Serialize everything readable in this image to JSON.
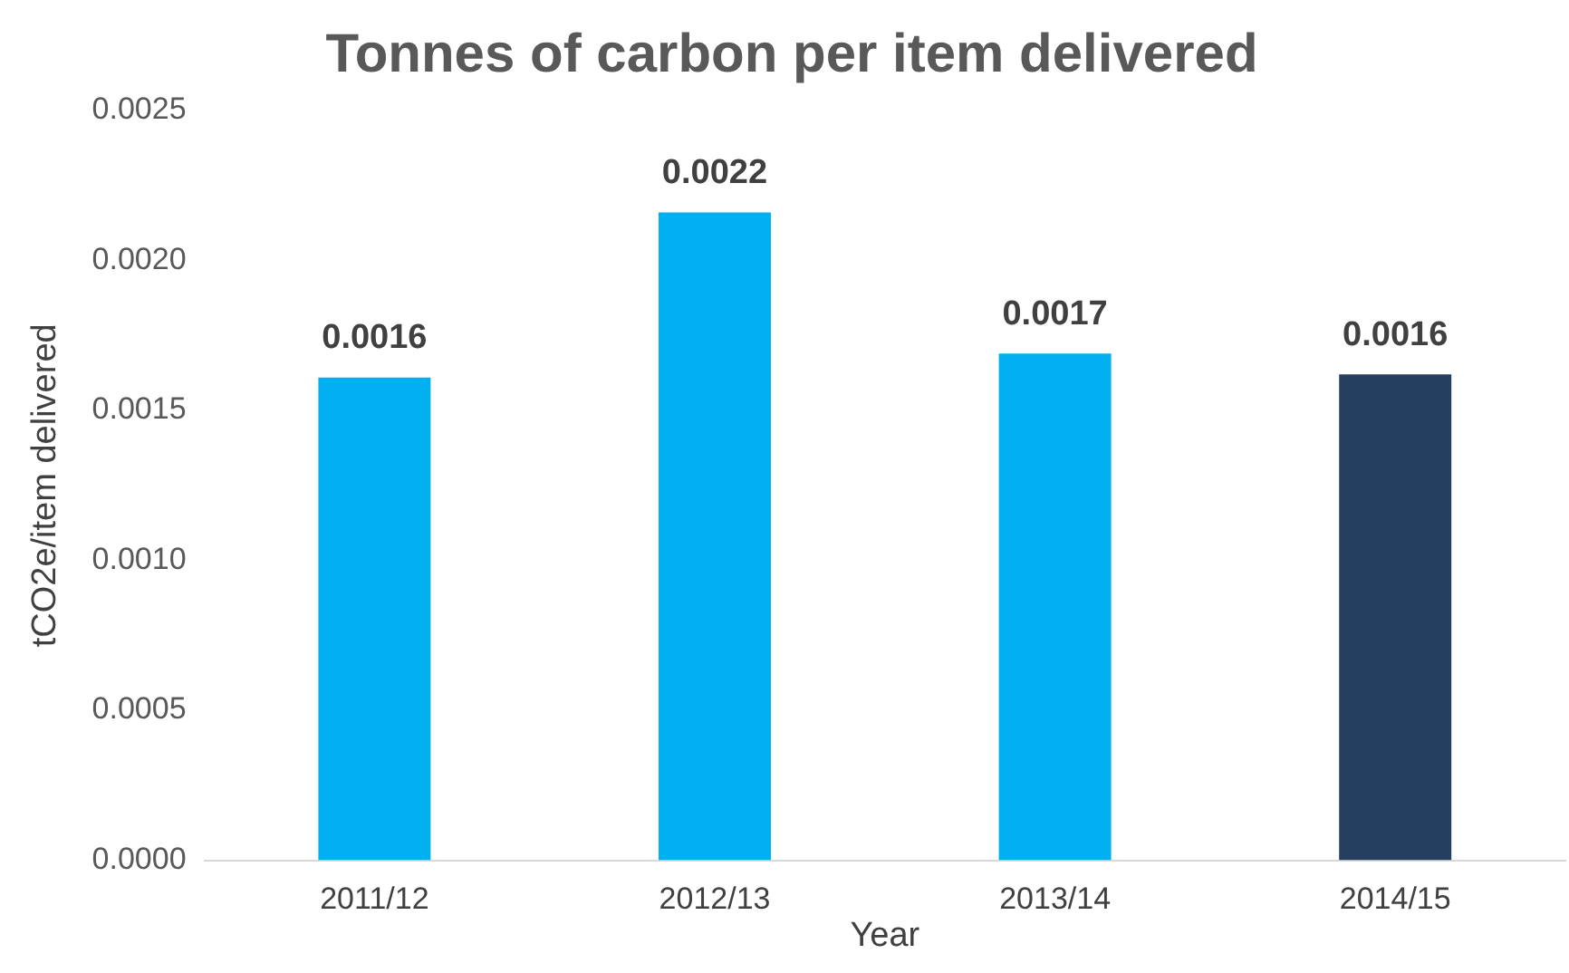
{
  "chart_data": {
    "type": "bar",
    "title": "Tonnes of carbon per item delivered",
    "xlabel": "Year",
    "ylabel": "tCO2e/item delivered",
    "categories": [
      "2011/12",
      "2012/13",
      "2013/14",
      "2014/15"
    ],
    "values": [
      0.00161,
      0.00216,
      0.00169,
      0.00162
    ],
    "value_labels": [
      "0.0016",
      "0.0022",
      "0.0017",
      "0.0016"
    ],
    "colors": [
      "#00b0f0",
      "#00b0f0",
      "#00b0f0",
      "#243f60"
    ],
    "ylim": [
      0,
      0.0025
    ],
    "yticks": [
      {
        "value": 0,
        "label": "0.0000"
      },
      {
        "value": 0.0005,
        "label": "0.0005"
      },
      {
        "value": 0.001,
        "label": "0.0010"
      },
      {
        "value": 0.0015,
        "label": "0.0015"
      },
      {
        "value": 0.002,
        "label": "0.0020"
      },
      {
        "value": 0.0025,
        "label": "0.0025"
      }
    ],
    "grid": false,
    "legend": false
  }
}
